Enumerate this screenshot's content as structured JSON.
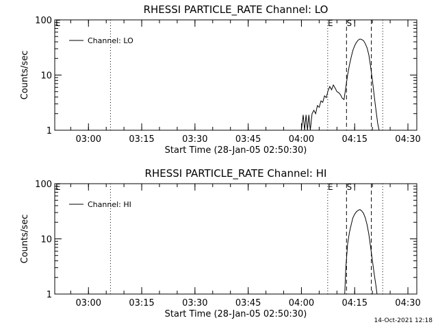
{
  "timestamp": "14-Oct-2021 12:18",
  "chart_data": [
    {
      "type": "line",
      "title": "RHESSI PARTICLE_RATE Channel: LO",
      "xlabel": "Start Time (28-Jan-05 02:50:30)",
      "ylabel": "Counts/sec",
      "x_unit": "minutes since start time",
      "xlim": [
        0,
        102
      ],
      "ylim": [
        1,
        100
      ],
      "yscale": "log",
      "x_ticks": [
        {
          "value": 9.5,
          "label": "03:00"
        },
        {
          "value": 24.5,
          "label": "03:15"
        },
        {
          "value": 39.5,
          "label": "03:30"
        },
        {
          "value": 54.5,
          "label": "03:45"
        },
        {
          "value": 69.5,
          "label": "04:00"
        },
        {
          "value": 84.5,
          "label": "04:15"
        },
        {
          "value": 99.5,
          "label": "04:30"
        }
      ],
      "y_ticks": [
        {
          "value": 1,
          "label": "1"
        },
        {
          "value": 10,
          "label": "10"
        },
        {
          "value": 100,
          "label": "100"
        }
      ],
      "legend": {
        "label": "Channel: LO",
        "position": "top-left"
      },
      "markers": [
        {
          "x": 15.7,
          "style": "dotted",
          "label": ""
        },
        {
          "x": 76.9,
          "style": "dotted",
          "label": "E"
        },
        {
          "x": 82.2,
          "style": "dashed",
          "label": "S"
        },
        {
          "x": 89.2,
          "style": "dashed",
          "label": ""
        },
        {
          "x": 92.4,
          "style": "dotted",
          "label": ""
        }
      ],
      "series": [
        {
          "name": "Channel: LO",
          "x": [
            69.5,
            70.0,
            70.4,
            70.8,
            71.2,
            71.6,
            72.0,
            72.5,
            73.0,
            73.5,
            74.0,
            74.5,
            75.0,
            75.5,
            76.0,
            76.5,
            77.0,
            77.5,
            78.0,
            78.5,
            79.0,
            79.5,
            80.0,
            80.5,
            81.0,
            81.5,
            82.0,
            82.5,
            83.0,
            83.5,
            84.0,
            84.5,
            85.0,
            85.5,
            86.0,
            86.5,
            87.0,
            87.5,
            88.0,
            88.5,
            89.0,
            89.5,
            90.0,
            90.5,
            91.0,
            91.4
          ],
          "y": [
            1.0,
            1.9,
            1.0,
            1.9,
            1.0,
            1.9,
            1.0,
            2.0,
            2.3,
            2.0,
            2.8,
            2.6,
            3.4,
            3.2,
            4.2,
            3.9,
            5.2,
            6.2,
            5.4,
            6.6,
            5.8,
            5.0,
            4.8,
            4.4,
            3.8,
            3.6,
            6.0,
            10.0,
            15.0,
            21.0,
            28.0,
            34.0,
            39.0,
            43.0,
            45.0,
            44.0,
            42.0,
            37.0,
            31.0,
            23.0,
            14.0,
            8.0,
            4.2,
            2.3,
            1.3,
            1.0
          ]
        }
      ]
    },
    {
      "type": "line",
      "title": "RHESSI PARTICLE_RATE Channel: HI",
      "xlabel": "Start Time (28-Jan-05 02:50:30)",
      "ylabel": "Counts/sec",
      "x_unit": "minutes since start time",
      "xlim": [
        0,
        102
      ],
      "ylim": [
        1,
        100
      ],
      "yscale": "log",
      "x_ticks": [
        {
          "value": 9.5,
          "label": "03:00"
        },
        {
          "value": 24.5,
          "label": "03:15"
        },
        {
          "value": 39.5,
          "label": "03:30"
        },
        {
          "value": 54.5,
          "label": "03:45"
        },
        {
          "value": 69.5,
          "label": "04:00"
        },
        {
          "value": 84.5,
          "label": "04:15"
        },
        {
          "value": 99.5,
          "label": "04:30"
        }
      ],
      "y_ticks": [
        {
          "value": 1,
          "label": "1"
        },
        {
          "value": 10,
          "label": "10"
        },
        {
          "value": 100,
          "label": "100"
        }
      ],
      "legend": {
        "label": "Channel: HI",
        "position": "top-left"
      },
      "markers": [
        {
          "x": 15.7,
          "style": "dotted",
          "label": ""
        },
        {
          "x": 76.9,
          "style": "dotted",
          "label": "E"
        },
        {
          "x": 82.2,
          "style": "dashed",
          "label": "S"
        },
        {
          "x": 89.2,
          "style": "dashed",
          "label": ""
        },
        {
          "x": 92.4,
          "style": "dotted",
          "label": ""
        }
      ],
      "series": [
        {
          "name": "Channel: HI",
          "x": [
            81.7,
            82.0,
            82.5,
            83.0,
            83.5,
            84.0,
            84.5,
            85.0,
            85.5,
            86.0,
            86.5,
            87.0,
            87.5,
            88.0,
            88.5,
            89.0,
            89.5,
            90.0,
            90.5,
            90.8
          ],
          "y": [
            1.0,
            3.0,
            8.0,
            13.0,
            18.0,
            24.0,
            28.0,
            31.0,
            33.0,
            34.0,
            32.0,
            29.0,
            24.0,
            18.0,
            12.0,
            7.0,
            4.0,
            2.3,
            1.4,
            1.0
          ]
        }
      ]
    }
  ]
}
